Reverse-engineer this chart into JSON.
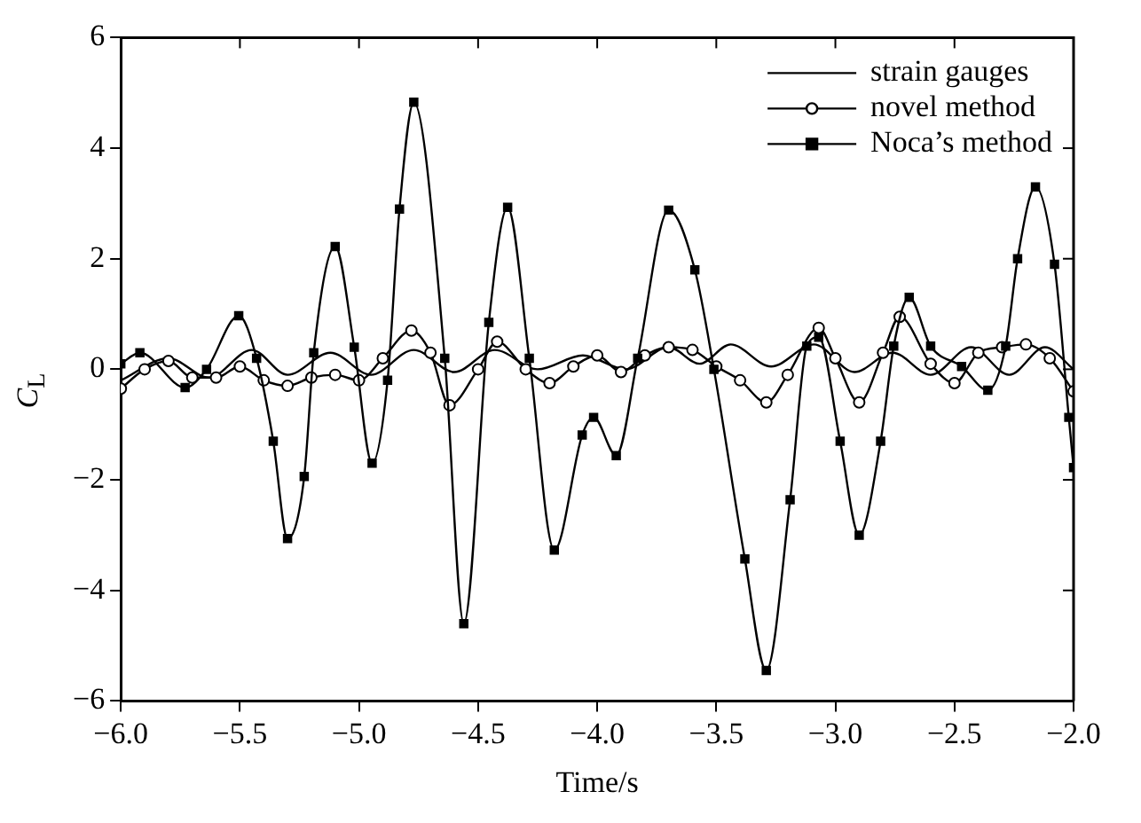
{
  "chart_data": {
    "type": "line",
    "xlabel": "Time/s",
    "ylabel": "C$_{L}$",
    "xlim": [
      -6.0,
      -2.0
    ],
    "xticks": [
      {
        "value": -6,
        "label": "−6.0"
      },
      {
        "value": -5.5,
        "label": "−5.5"
      },
      {
        "value": -5,
        "label": "−5.0"
      },
      {
        "value": -4.5,
        "label": "−4.5"
      },
      {
        "value": -4,
        "label": "−4.0"
      },
      {
        "value": -3.5,
        "label": "−3.5"
      },
      {
        "value": -3,
        "label": "−3.0"
      },
      {
        "value": -2.5,
        "label": "−2.5"
      },
      {
        "value": -2,
        "label": "−2.0"
      }
    ],
    "ylim": [
      -6,
      6
    ],
    "yticks": [
      {
        "value": -6,
        "label": "−6"
      },
      {
        "value": -4,
        "label": "−4"
      },
      {
        "value": -2,
        "label": "−2"
      },
      0,
      2,
      4,
      6
    ],
    "grid": false,
    "legend": "top right",
    "series": [
      {
        "name": "strain gauges",
        "color": "#000000",
        "marker": "none",
        "x": [
          -6.0,
          -5.8,
          -5.63,
          -5.45,
          -5.3,
          -5.12,
          -4.95,
          -4.77,
          -4.6,
          -4.43,
          -4.25,
          -4.06,
          -3.88,
          -3.7,
          -3.57,
          -3.44,
          -3.27,
          -3.09,
          -2.92,
          -2.76,
          -2.6,
          -2.43,
          -2.27,
          -2.12,
          -2.0
        ],
        "values": [
          -0.2,
          0.2,
          -0.15,
          0.35,
          -0.1,
          0.3,
          -0.1,
          0.35,
          -0.05,
          0.35,
          0.0,
          0.25,
          0.0,
          0.4,
          0.1,
          0.45,
          0.05,
          0.45,
          -0.05,
          0.3,
          -0.1,
          0.4,
          -0.1,
          0.4,
          0.0
        ]
      },
      {
        "name": "novel method",
        "color": "#000000",
        "marker": "circle",
        "x": [
          -6.0,
          -5.9,
          -5.8,
          -5.7,
          -5.6,
          -5.5,
          -5.4,
          -5.3,
          -5.2,
          -5.1,
          -5.0,
          -4.9,
          -4.78,
          -4.7,
          -4.62,
          -4.5,
          -4.42,
          -4.3,
          -4.2,
          -4.1,
          -4.0,
          -3.9,
          -3.8,
          -3.7,
          -3.6,
          -3.5,
          -3.4,
          -3.29,
          -3.2,
          -3.07,
          -3.0,
          -2.9,
          -2.8,
          -2.73,
          -2.6,
          -2.5,
          -2.4,
          -2.3,
          -2.2,
          -2.1,
          -2.0
        ],
        "values": [
          -0.35,
          0.0,
          0.15,
          -0.15,
          -0.15,
          0.05,
          -0.2,
          -0.3,
          -0.15,
          -0.1,
          -0.2,
          0.2,
          0.7,
          0.3,
          -0.65,
          0.0,
          0.5,
          0.0,
          -0.25,
          0.05,
          0.25,
          -0.05,
          0.25,
          0.4,
          0.35,
          0.05,
          -0.2,
          -0.6,
          -0.1,
          0.75,
          0.2,
          -0.6,
          0.3,
          0.95,
          0.1,
          -0.25,
          0.3,
          0.4,
          0.45,
          0.2,
          -0.4
        ]
      },
      {
        "name": "Noca’s method",
        "color": "#000000",
        "marker": "square",
        "x": [
          -6.0,
          -5.92,
          -5.73,
          -5.64,
          -5.505,
          -5.43,
          -5.36,
          -5.3,
          -5.23,
          -5.19,
          -5.1,
          -5.02,
          -4.945,
          -4.88,
          -4.83,
          -4.77,
          -4.64,
          -4.56,
          -4.455,
          -4.376,
          -4.285,
          -4.18,
          -4.063,
          -4.015,
          -3.92,
          -3.83,
          -3.7,
          -3.59,
          -3.51,
          -3.38,
          -3.29,
          -3.19,
          -3.12,
          -3.07,
          -2.98,
          -2.9,
          -2.81,
          -2.755,
          -2.69,
          -2.6,
          -2.47,
          -2.36,
          -2.285,
          -2.235,
          -2.16,
          -2.08,
          -2.02,
          -2.0
        ],
        "values": [
          0.1,
          0.3,
          -0.33,
          0.0,
          0.97,
          0.2,
          -1.3,
          -3.06,
          -1.94,
          0.3,
          2.22,
          0.4,
          -1.7,
          -0.2,
          2.9,
          4.83,
          0.2,
          -4.6,
          0.85,
          2.93,
          0.2,
          -3.27,
          -1.19,
          -0.87,
          -1.56,
          0.2,
          2.88,
          1.8,
          0.0,
          -3.43,
          -5.45,
          -2.36,
          0.42,
          0.58,
          -1.3,
          -3.0,
          -1.3,
          0.42,
          1.3,
          0.42,
          0.05,
          -0.38,
          0.42,
          2.0,
          3.3,
          1.9,
          -0.87,
          -1.78
        ]
      }
    ]
  }
}
